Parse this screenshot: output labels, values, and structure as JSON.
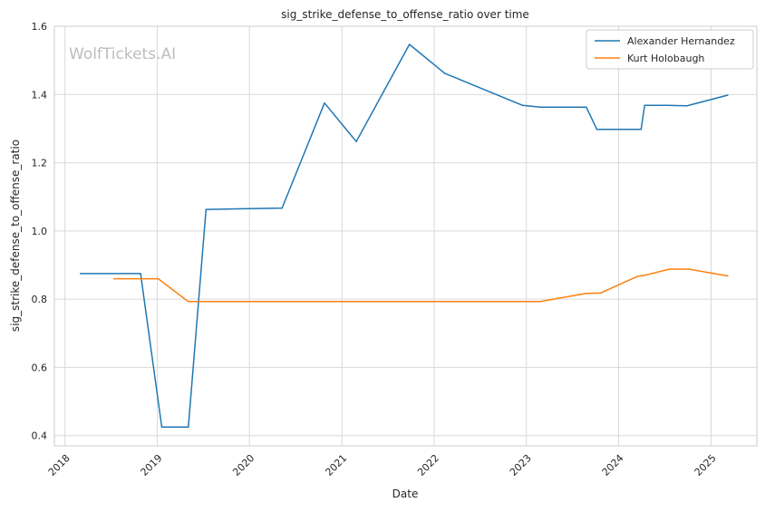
{
  "chart_data": {
    "type": "line",
    "title": "sig_strike_defense_to_offense_ratio over time",
    "xlabel": "Date",
    "ylabel": "sig_strike_defense_to_offense_ratio",
    "watermark": "WolfTickets.AI",
    "grid": true,
    "legend_position": "top-right",
    "xlim": [
      "2017-11-20",
      "2025-07-01"
    ],
    "ylim": [
      0.37,
      1.6
    ],
    "x_ticks": [
      "2018-01-01",
      "2019-01-01",
      "2020-01-01",
      "2021-01-01",
      "2022-01-01",
      "2023-01-01",
      "2024-01-01",
      "2025-01-01"
    ],
    "x_tick_labels": [
      "2018",
      "2019",
      "2020",
      "2021",
      "2022",
      "2023",
      "2024",
      "2025"
    ],
    "y_ticks": [
      0.4,
      0.6,
      0.8,
      1.0,
      1.2,
      1.4,
      1.6
    ],
    "y_tick_labels": [
      "0.4",
      "0.6",
      "0.8",
      "1.0",
      "1.2",
      "1.4",
      "1.6"
    ],
    "series": [
      {
        "name": "Alexander Hernandez",
        "color": "#1f77b4",
        "points": [
          [
            "2018-03-03",
            0.875
          ],
          [
            "2018-10-27",
            0.875
          ],
          [
            "2019-01-19",
            0.425
          ],
          [
            "2019-05-04",
            0.425
          ],
          [
            "2019-07-13",
            1.063
          ],
          [
            "2020-05-09",
            1.067
          ],
          [
            "2020-10-24",
            1.375
          ],
          [
            "2021-02-27",
            1.262
          ],
          [
            "2021-09-25",
            1.547
          ],
          [
            "2022-02-12",
            1.462
          ],
          [
            "2022-12-17",
            1.368
          ],
          [
            "2023-02-25",
            1.363
          ],
          [
            "2023-08-26",
            1.363
          ],
          [
            "2023-10-07",
            1.298
          ],
          [
            "2024-03-30",
            1.298
          ],
          [
            "2024-04-13",
            1.368
          ],
          [
            "2024-07-13",
            1.368
          ],
          [
            "2024-09-28",
            1.367
          ],
          [
            "2025-03-08",
            1.398
          ]
        ]
      },
      {
        "name": "Kurt Holobaugh",
        "color": "#ff7f0e",
        "points": [
          [
            "2018-07-14",
            0.86
          ],
          [
            "2019-01-05",
            0.86
          ],
          [
            "2019-05-04",
            0.793
          ],
          [
            "2023-02-25",
            0.793
          ],
          [
            "2023-08-26",
            0.817
          ],
          [
            "2023-10-21",
            0.818
          ],
          [
            "2024-03-16",
            0.867
          ],
          [
            "2024-04-13",
            0.87
          ],
          [
            "2024-07-20",
            0.888
          ],
          [
            "2024-10-05",
            0.888
          ],
          [
            "2025-03-08",
            0.868
          ]
        ]
      }
    ]
  }
}
